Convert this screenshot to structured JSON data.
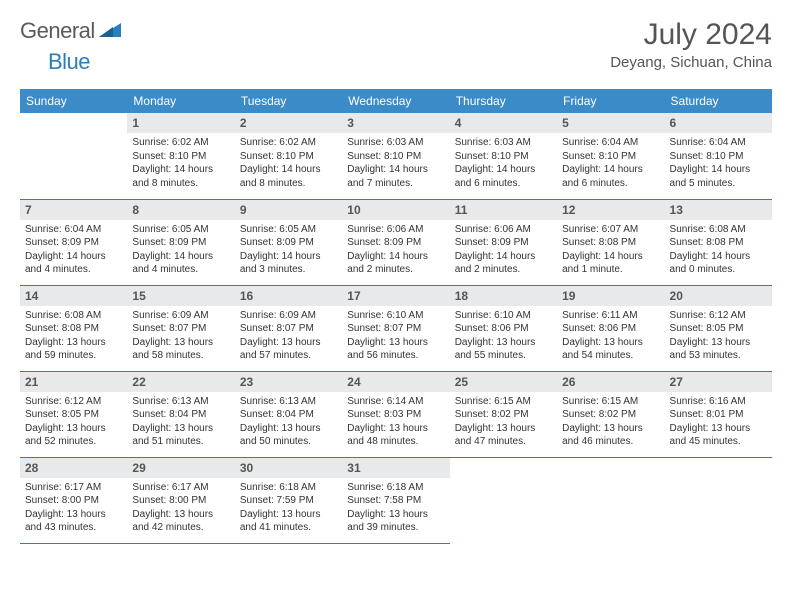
{
  "logo": {
    "textA": "General",
    "textB": "Blue"
  },
  "title": "July 2024",
  "location": "Deyang, Sichuan, China",
  "header_color": "#3b8bc9",
  "week_border_color": "#3b7aa8",
  "daynum_bg": "#e8e9ea",
  "weekdays": [
    "Sunday",
    "Monday",
    "Tuesday",
    "Wednesday",
    "Thursday",
    "Friday",
    "Saturday"
  ],
  "weeks": [
    [
      null,
      {
        "n": "1",
        "sunrise": "Sunrise: 6:02 AM",
        "sunset": "Sunset: 8:10 PM",
        "day": "Daylight: 14 hours and 8 minutes."
      },
      {
        "n": "2",
        "sunrise": "Sunrise: 6:02 AM",
        "sunset": "Sunset: 8:10 PM",
        "day": "Daylight: 14 hours and 8 minutes."
      },
      {
        "n": "3",
        "sunrise": "Sunrise: 6:03 AM",
        "sunset": "Sunset: 8:10 PM",
        "day": "Daylight: 14 hours and 7 minutes."
      },
      {
        "n": "4",
        "sunrise": "Sunrise: 6:03 AM",
        "sunset": "Sunset: 8:10 PM",
        "day": "Daylight: 14 hours and 6 minutes."
      },
      {
        "n": "5",
        "sunrise": "Sunrise: 6:04 AM",
        "sunset": "Sunset: 8:10 PM",
        "day": "Daylight: 14 hours and 6 minutes."
      },
      {
        "n": "6",
        "sunrise": "Sunrise: 6:04 AM",
        "sunset": "Sunset: 8:10 PM",
        "day": "Daylight: 14 hours and 5 minutes."
      }
    ],
    [
      {
        "n": "7",
        "sunrise": "Sunrise: 6:04 AM",
        "sunset": "Sunset: 8:09 PM",
        "day": "Daylight: 14 hours and 4 minutes."
      },
      {
        "n": "8",
        "sunrise": "Sunrise: 6:05 AM",
        "sunset": "Sunset: 8:09 PM",
        "day": "Daylight: 14 hours and 4 minutes."
      },
      {
        "n": "9",
        "sunrise": "Sunrise: 6:05 AM",
        "sunset": "Sunset: 8:09 PM",
        "day": "Daylight: 14 hours and 3 minutes."
      },
      {
        "n": "10",
        "sunrise": "Sunrise: 6:06 AM",
        "sunset": "Sunset: 8:09 PM",
        "day": "Daylight: 14 hours and 2 minutes."
      },
      {
        "n": "11",
        "sunrise": "Sunrise: 6:06 AM",
        "sunset": "Sunset: 8:09 PM",
        "day": "Daylight: 14 hours and 2 minutes."
      },
      {
        "n": "12",
        "sunrise": "Sunrise: 6:07 AM",
        "sunset": "Sunset: 8:08 PM",
        "day": "Daylight: 14 hours and 1 minute."
      },
      {
        "n": "13",
        "sunrise": "Sunrise: 6:08 AM",
        "sunset": "Sunset: 8:08 PM",
        "day": "Daylight: 14 hours and 0 minutes."
      }
    ],
    [
      {
        "n": "14",
        "sunrise": "Sunrise: 6:08 AM",
        "sunset": "Sunset: 8:08 PM",
        "day": "Daylight: 13 hours and 59 minutes."
      },
      {
        "n": "15",
        "sunrise": "Sunrise: 6:09 AM",
        "sunset": "Sunset: 8:07 PM",
        "day": "Daylight: 13 hours and 58 minutes."
      },
      {
        "n": "16",
        "sunrise": "Sunrise: 6:09 AM",
        "sunset": "Sunset: 8:07 PM",
        "day": "Daylight: 13 hours and 57 minutes."
      },
      {
        "n": "17",
        "sunrise": "Sunrise: 6:10 AM",
        "sunset": "Sunset: 8:07 PM",
        "day": "Daylight: 13 hours and 56 minutes."
      },
      {
        "n": "18",
        "sunrise": "Sunrise: 6:10 AM",
        "sunset": "Sunset: 8:06 PM",
        "day": "Daylight: 13 hours and 55 minutes."
      },
      {
        "n": "19",
        "sunrise": "Sunrise: 6:11 AM",
        "sunset": "Sunset: 8:06 PM",
        "day": "Daylight: 13 hours and 54 minutes."
      },
      {
        "n": "20",
        "sunrise": "Sunrise: 6:12 AM",
        "sunset": "Sunset: 8:05 PM",
        "day": "Daylight: 13 hours and 53 minutes."
      }
    ],
    [
      {
        "n": "21",
        "sunrise": "Sunrise: 6:12 AM",
        "sunset": "Sunset: 8:05 PM",
        "day": "Daylight: 13 hours and 52 minutes."
      },
      {
        "n": "22",
        "sunrise": "Sunrise: 6:13 AM",
        "sunset": "Sunset: 8:04 PM",
        "day": "Daylight: 13 hours and 51 minutes."
      },
      {
        "n": "23",
        "sunrise": "Sunrise: 6:13 AM",
        "sunset": "Sunset: 8:04 PM",
        "day": "Daylight: 13 hours and 50 minutes."
      },
      {
        "n": "24",
        "sunrise": "Sunrise: 6:14 AM",
        "sunset": "Sunset: 8:03 PM",
        "day": "Daylight: 13 hours and 48 minutes."
      },
      {
        "n": "25",
        "sunrise": "Sunrise: 6:15 AM",
        "sunset": "Sunset: 8:02 PM",
        "day": "Daylight: 13 hours and 47 minutes."
      },
      {
        "n": "26",
        "sunrise": "Sunrise: 6:15 AM",
        "sunset": "Sunset: 8:02 PM",
        "day": "Daylight: 13 hours and 46 minutes."
      },
      {
        "n": "27",
        "sunrise": "Sunrise: 6:16 AM",
        "sunset": "Sunset: 8:01 PM",
        "day": "Daylight: 13 hours and 45 minutes."
      }
    ],
    [
      {
        "n": "28",
        "sunrise": "Sunrise: 6:17 AM",
        "sunset": "Sunset: 8:00 PM",
        "day": "Daylight: 13 hours and 43 minutes."
      },
      {
        "n": "29",
        "sunrise": "Sunrise: 6:17 AM",
        "sunset": "Sunset: 8:00 PM",
        "day": "Daylight: 13 hours and 42 minutes."
      },
      {
        "n": "30",
        "sunrise": "Sunrise: 6:18 AM",
        "sunset": "Sunset: 7:59 PM",
        "day": "Daylight: 13 hours and 41 minutes."
      },
      {
        "n": "31",
        "sunrise": "Sunrise: 6:18 AM",
        "sunset": "Sunset: 7:58 PM",
        "day": "Daylight: 13 hours and 39 minutes."
      },
      null,
      null,
      null
    ]
  ]
}
